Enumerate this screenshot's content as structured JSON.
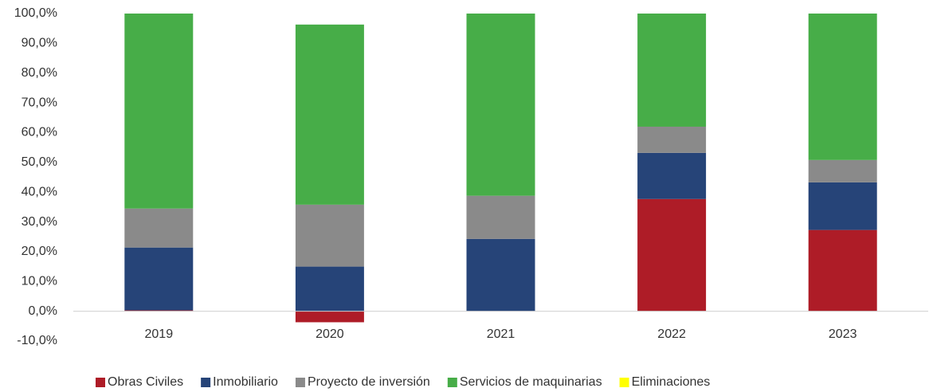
{
  "chart_data": {
    "type": "stacked_bar",
    "categories": [
      "2019",
      "2020",
      "2021",
      "2022",
      "2023"
    ],
    "series": [
      {
        "name": "Obras Civiles",
        "color": "#ae1c27",
        "values": [
          0.3,
          -3.7,
          0,
          37.7,
          27.3
        ]
      },
      {
        "name": "Inmobiliario",
        "color": "#264478",
        "values": [
          21.1,
          15.0,
          24.3,
          15.5,
          16.0
        ]
      },
      {
        "name": "Proyecto de inversión",
        "color": "#8a8a8a",
        "values": [
          13.1,
          20.8,
          14.5,
          8.8,
          7.5
        ]
      },
      {
        "name": "Servicios de maquinarias",
        "color": "#47ad48",
        "values": [
          65.5,
          60.5,
          61.2,
          38.0,
          49.2
        ]
      },
      {
        "name": "Eliminaciones",
        "color": "#ffff00",
        "values": [
          0,
          0,
          0,
          0,
          0
        ]
      }
    ],
    "ylim": [
      -10,
      100
    ],
    "yticks": [
      {
        "value": -10,
        "label": "-10,0%"
      },
      {
        "value": 0,
        "label": "0,0%"
      },
      {
        "value": 10,
        "label": "10,0%"
      },
      {
        "value": 20,
        "label": "20,0%"
      },
      {
        "value": 30,
        "label": "30,0%"
      },
      {
        "value": 40,
        "label": "40,0%"
      },
      {
        "value": 50,
        "label": "50,0%"
      },
      {
        "value": 60,
        "label": "60,0%"
      },
      {
        "value": 70,
        "label": "70,0%"
      },
      {
        "value": 80,
        "label": "80,0%"
      },
      {
        "value": 90,
        "label": "90,0%"
      },
      {
        "value": 100,
        "label": "100,0%"
      }
    ],
    "legend": "bottom"
  }
}
